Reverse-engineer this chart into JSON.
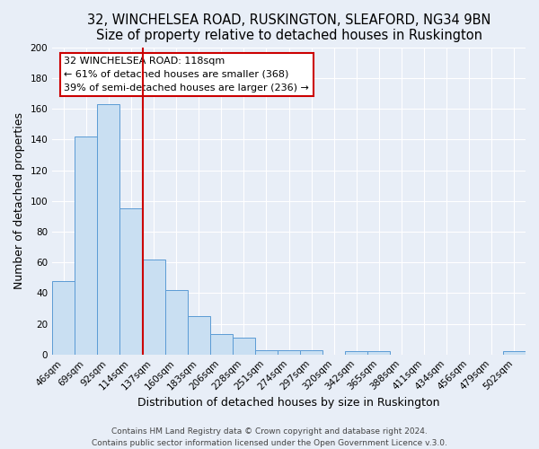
{
  "title": "32, WINCHELSEA ROAD, RUSKINGTON, SLEAFORD, NG34 9BN",
  "subtitle": "Size of property relative to detached houses in Ruskington",
  "xlabel": "Distribution of detached houses by size in Ruskington",
  "ylabel": "Number of detached properties",
  "bar_labels": [
    "46sqm",
    "69sqm",
    "92sqm",
    "114sqm",
    "137sqm",
    "160sqm",
    "183sqm",
    "206sqm",
    "228sqm",
    "251sqm",
    "274sqm",
    "297sqm",
    "320sqm",
    "342sqm",
    "365sqm",
    "388sqm",
    "411sqm",
    "434sqm",
    "456sqm",
    "479sqm",
    "502sqm"
  ],
  "bar_values": [
    48,
    142,
    163,
    95,
    62,
    42,
    25,
    13,
    11,
    3,
    3,
    3,
    0,
    2,
    2,
    0,
    0,
    0,
    0,
    0,
    2
  ],
  "bar_color": "#c9dff2",
  "bar_edge_color": "#5b9bd5",
  "vline_position": 3.5,
  "vline_color": "#cc0000",
  "reference_line_label": "32 WINCHELSEA ROAD: 118sqm",
  "annotation_line1": "← 61% of detached houses are smaller (368)",
  "annotation_line2": "39% of semi-detached houses are larger (236) →",
  "annotation_box_facecolor": "#ffffff",
  "annotation_box_edgecolor": "#cc0000",
  "ylim": [
    0,
    200
  ],
  "yticks": [
    0,
    20,
    40,
    60,
    80,
    100,
    120,
    140,
    160,
    180,
    200
  ],
  "bg_color": "#e8eef7",
  "plot_bg_color": "#e8eef7",
  "grid_color": "#ffffff",
  "footer1": "Contains HM Land Registry data © Crown copyright and database right 2024.",
  "footer2": "Contains public sector information licensed under the Open Government Licence v.3.0.",
  "title_fontsize": 10.5,
  "axis_label_fontsize": 9,
  "tick_fontsize": 7.5,
  "footer_fontsize": 6.5
}
